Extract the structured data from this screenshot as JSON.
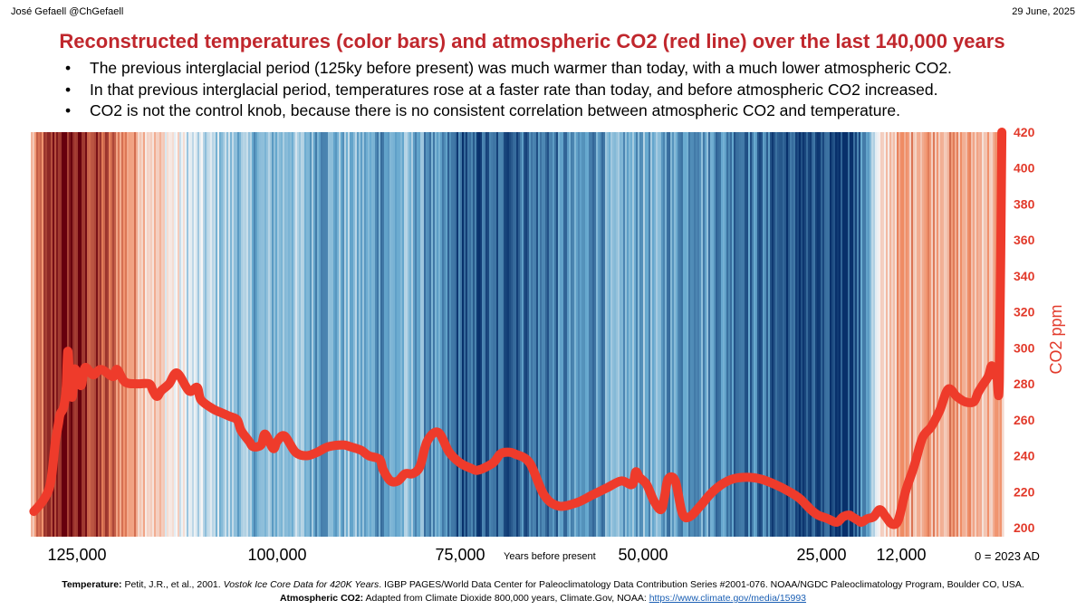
{
  "header": {
    "author": "José Gefaell @ChGefaell",
    "date": "29 June, 2025"
  },
  "title": "Reconstructed temperatures (color bars) and atmospheric CO2 (red line) over the last 140,000 years",
  "bullets": [
    "The previous interglacial period (125ky before present) was much warmer than today, with a much lower atmospheric CO2.",
    "In that previous interglacial period, temperatures rose at a faster rate than today, and before atmospheric CO2 increased.",
    "CO2 is not the control knob, because there is no consistent correlation between atmospheric CO2 and temperature."
  ],
  "footer": {
    "temp_label": "Temperature:",
    "temp_authors": " Petit, J.R., et al., 2001. ",
    "temp_italic": "Vostok Ice Core Data for 420K Years",
    "temp_rest": ". IGBP PAGES/World Data Center for Paleoclimatology Data Contribution Series #2001-076. NOAA/NGDC Paleoclimatology Program, Boulder CO, USA.",
    "co2_label": "Atmospheric CO2:",
    "co2_text": " Adapted from Climate Dioxide 800,000 years, Climate.Gov, NOAA: ",
    "co2_link": "https://www.climate.gov/media/15993"
  },
  "chart_data": {
    "type": "line",
    "title": "Reconstructed temperatures (color bars) and atmospheric CO2 (red line) over the last 140,000 years",
    "xlabel": "Years before present",
    "ylabel": "CO2 ppm",
    "ylim": [
      200,
      420
    ],
    "y_ticks": [
      200,
      220,
      240,
      260,
      280,
      300,
      320,
      340,
      360,
      380,
      400,
      420
    ],
    "x_tick_labels": [
      "125,000",
      "100,000",
      "75,000",
      "50,000",
      "25,000",
      "12,000",
      "0 = 2023 AD"
    ],
    "x_tick_values": [
      125000,
      100000,
      75000,
      50000,
      25000,
      12000,
      0
    ],
    "x_reversed": true,
    "line_color": "#ee3b2b",
    "temperature_stripes": {
      "description_scale": "diverging: dark red = warm, white = neutral, dark blue = cold",
      "colors": {
        "warm_dark": "#67000d",
        "warm": "#ef8a62",
        "neutral": "#f7f7f7",
        "cold": "#67a9cf",
        "cold_dark": "#08306b"
      },
      "anomaly_by_age": [
        {
          "x": 140000,
          "v": 0.2
        },
        {
          "x": 137000,
          "v": 0.55
        },
        {
          "x": 133000,
          "v": 0.8
        },
        {
          "x": 130000,
          "v": 0.95
        },
        {
          "x": 127000,
          "v": 0.92
        },
        {
          "x": 124000,
          "v": 0.82
        },
        {
          "x": 121000,
          "v": 0.62
        },
        {
          "x": 118000,
          "v": 0.42
        },
        {
          "x": 116000,
          "v": 0.25
        },
        {
          "x": 113000,
          "v": 0.05
        },
        {
          "x": 110000,
          "v": -0.2
        },
        {
          "x": 106000,
          "v": -0.3
        },
        {
          "x": 102000,
          "v": -0.45
        },
        {
          "x": 98000,
          "v": -0.3
        },
        {
          "x": 94000,
          "v": -0.5
        },
        {
          "x": 90000,
          "v": -0.4
        },
        {
          "x": 86000,
          "v": -0.55
        },
        {
          "x": 82000,
          "v": -0.4
        },
        {
          "x": 78000,
          "v": -0.65
        },
        {
          "x": 74000,
          "v": -0.85
        },
        {
          "x": 70000,
          "v": -0.8
        },
        {
          "x": 66000,
          "v": -0.72
        },
        {
          "x": 62000,
          "v": -0.68
        },
        {
          "x": 58000,
          "v": -0.6
        },
        {
          "x": 54000,
          "v": -0.5
        },
        {
          "x": 50000,
          "v": -0.45
        },
        {
          "x": 46000,
          "v": -0.55
        },
        {
          "x": 42000,
          "v": -0.5
        },
        {
          "x": 38000,
          "v": -0.62
        },
        {
          "x": 34000,
          "v": -0.7
        },
        {
          "x": 30000,
          "v": -0.85
        },
        {
          "x": 26000,
          "v": -0.92
        },
        {
          "x": 22000,
          "v": -0.95
        },
        {
          "x": 19000,
          "v": -0.82
        },
        {
          "x": 17000,
          "v": -0.35
        },
        {
          "x": 15500,
          "v": -0.05
        },
        {
          "x": 14000,
          "v": 0.25
        },
        {
          "x": 12000,
          "v": 0.35
        },
        {
          "x": 9000,
          "v": 0.42
        },
        {
          "x": 6000,
          "v": 0.38
        },
        {
          "x": 3000,
          "v": 0.32
        },
        {
          "x": 0,
          "v": 0.3
        }
      ]
    },
    "series": [
      {
        "x": [
          139000,
          136000,
          134000,
          133000,
          132000,
          131000,
          130500,
          129500,
          129000,
          128500,
          128000,
          127500,
          127000,
          126500,
          126000,
          125500,
          124500,
          124000,
          123000,
          122000,
          120500,
          120000,
          119000,
          117500,
          116000,
          115500,
          115000,
          114500,
          113500,
          112500,
          111000,
          110000,
          109500,
          108000,
          107000,
          106000,
          105000,
          104500,
          103500,
          103000,
          102000,
          101500,
          100500,
          100000,
          99000,
          97500,
          96000,
          94500,
          93000,
          91000,
          90000,
          88500,
          87500,
          86000,
          85500,
          84500,
          83500,
          82500,
          81500,
          80500,
          79500,
          78000,
          76500,
          75000,
          73500,
          72500,
          70500,
          69500,
          68500,
          67500,
          65500,
          63500,
          61500,
          59000,
          57000,
          55000,
          53000,
          51500,
          51000,
          50500,
          49500,
          48500,
          47500,
          47000,
          46500,
          45500,
          44500,
          43500,
          42000,
          40500,
          39000,
          37500,
          35500,
          33500,
          31500,
          29500,
          28000,
          26500,
          25500,
          24000,
          22500,
          21500,
          20500,
          20000,
          19500,
          19000,
          18500,
          17500,
          16500,
          15500,
          14500,
          13500,
          12500,
          11500,
          10500,
          9500,
          8500,
          7500,
          6500,
          5500,
          4500,
          3500,
          3000,
          2500,
          1800,
          1400,
          1100,
          800,
          500,
          200
        ],
        "y": [
          209,
          215,
          222,
          232,
          248,
          258,
          263,
          266,
          270,
          278,
          298,
          286,
          276,
          273,
          285,
          288,
          279,
          289,
          285,
          288,
          284,
          288,
          281,
          280,
          280,
          276,
          273,
          276,
          280,
          286,
          276,
          278,
          271,
          266,
          264,
          262,
          260,
          254,
          248,
          245,
          246,
          252,
          244,
          248,
          251,
          242,
          240,
          242,
          245,
          246,
          245,
          243,
          240,
          238,
          232,
          226,
          226,
          230,
          230,
          234,
          248,
          253,
          242,
          236,
          233,
          232,
          236,
          241,
          242,
          241,
          236,
          218,
          212,
          214,
          218,
          222,
          226,
          224,
          231,
          228,
          224,
          215,
          210,
          217,
          227,
          226,
          208,
          206,
          212,
          219,
          224,
          227,
          228,
          227,
          224,
          220,
          216,
          210,
          207,
          205,
          203,
          206,
          207,
          206,
          205,
          204,
          203,
          205,
          206,
          210,
          206,
          202,
          204,
          220,
          234,
          250,
          256,
          265,
          277,
          273,
          270,
          270,
          275,
          279,
          284,
          290,
          285,
          285,
          283,
          420
        ]
      }
    ]
  }
}
